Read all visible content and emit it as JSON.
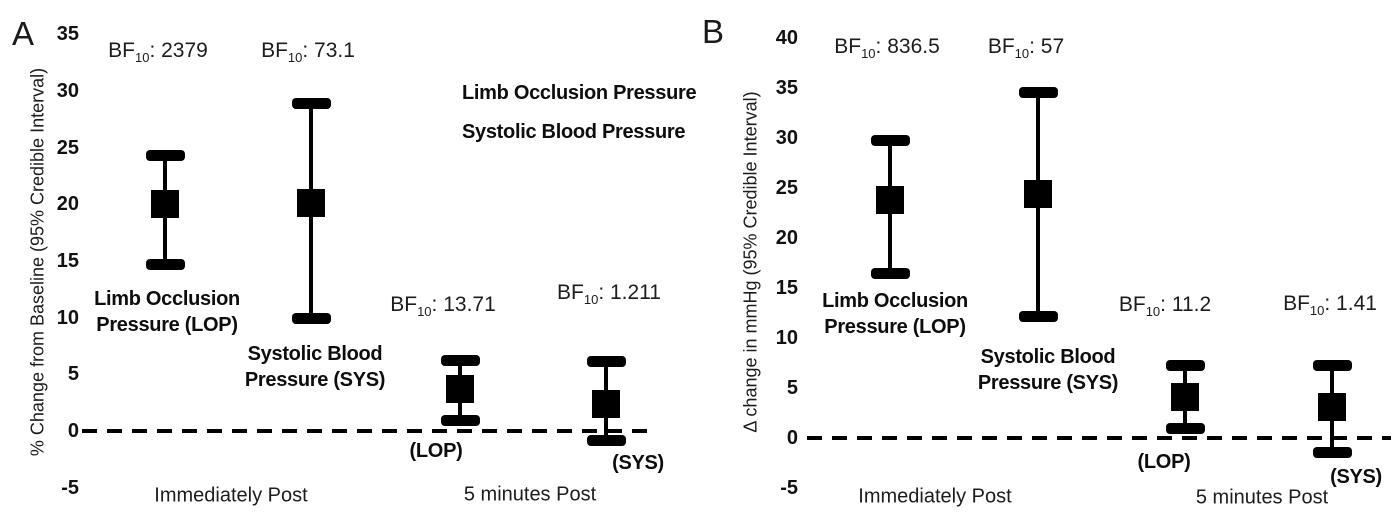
{
  "figure": {
    "background": "#ffffff",
    "ink_color": "#000000"
  },
  "chart_data": [
    {
      "panel": "A",
      "type": "scatter",
      "subtype": "point-estimates-with-error-bars",
      "ylabel": "% Change from Baseline (95% Credible Interval)",
      "yticks": [
        35,
        30,
        25,
        20,
        15,
        10,
        5,
        0,
        -5
      ],
      "ylim": [
        -5,
        35
      ],
      "grid": false,
      "zero_reference_line": "dashed",
      "categories": [
        "Immediately Post",
        "5 minutes Post"
      ],
      "legend_lines": [
        "Limb Occlusion Pressure",
        "Systolic Blood Pressure"
      ],
      "bf_prefix": "BF",
      "bf_subscript": "10",
      "bf_separator": ": ",
      "points": [
        {
          "category": "Immediately Post",
          "series": "Limb Occlusion Pressure (LOP)",
          "label_lines": [
            "Limb Occlusion",
            "Pressure (LOP)"
          ],
          "mean": 20.0,
          "ci_low": 14.7,
          "ci_high": 24.3,
          "bf10": "2379"
        },
        {
          "category": "Immediately Post",
          "series": "Systolic Blood Pressure (SYS)",
          "label_lines": [
            "Systolic Blood",
            "Pressure (SYS)"
          ],
          "mean": 20.1,
          "ci_low": 9.9,
          "ci_high": 28.9,
          "bf10": "73.1"
        },
        {
          "category": "5 minutes Post",
          "series": "Limb Occlusion Pressure (LOP)",
          "label_lines": [
            "(LOP)"
          ],
          "mean": 3.7,
          "ci_low": 0.9,
          "ci_high": 6.2,
          "bf10": "13.71"
        },
        {
          "category": "5 minutes Post",
          "series": "Systolic Blood Pressure (SYS)",
          "label_lines": [
            "(SYS)"
          ],
          "mean": 2.4,
          "ci_low": -0.8,
          "ci_high": 6.1,
          "bf10": "1.211"
        }
      ]
    },
    {
      "panel": "B",
      "type": "scatter",
      "subtype": "point-estimates-with-error-bars",
      "ylabel": "Δ change in mmHg (95% Credible Interval)",
      "yticks": [
        40,
        35,
        30,
        25,
        20,
        15,
        10,
        5,
        0,
        -5
      ],
      "ylim": [
        -5,
        40
      ],
      "grid": false,
      "zero_reference_line": "dashed",
      "categories": [
        "Immediately Post",
        "5 minutes Post"
      ],
      "legend_lines": [],
      "bf_prefix": "BF",
      "bf_subscript": "10",
      "bf_separator": ": ",
      "points": [
        {
          "category": "Immediately Post",
          "series": "Limb Occlusion Pressure (LOP)",
          "label_lines": [
            "Limb Occlusion",
            "Pressure (LOP)"
          ],
          "mean": 23.8,
          "ci_low": 16.5,
          "ci_high": 29.8,
          "bf10": "836.5"
        },
        {
          "category": "Immediately Post",
          "series": "Systolic Blood Pressure (SYS)",
          "label_lines": [
            "Systolic Blood",
            "Pressure (SYS)"
          ],
          "mean": 24.4,
          "ci_low": 12.2,
          "ci_high": 34.6,
          "bf10": "57"
        },
        {
          "category": "5 minutes Post",
          "series": "Limb Occlusion Pressure (LOP)",
          "label_lines": [
            "(LOP)"
          ],
          "mean": 4.1,
          "ci_low": 1.0,
          "ci_high": 7.3,
          "bf10": "11.2"
        },
        {
          "category": "5 minutes Post",
          "series": "Systolic Blood Pressure (SYS)",
          "label_lines": [
            "(SYS)"
          ],
          "mean": 3.1,
          "ci_low": -1.4,
          "ci_high": 7.3,
          "bf10": "1.41"
        }
      ]
    }
  ]
}
